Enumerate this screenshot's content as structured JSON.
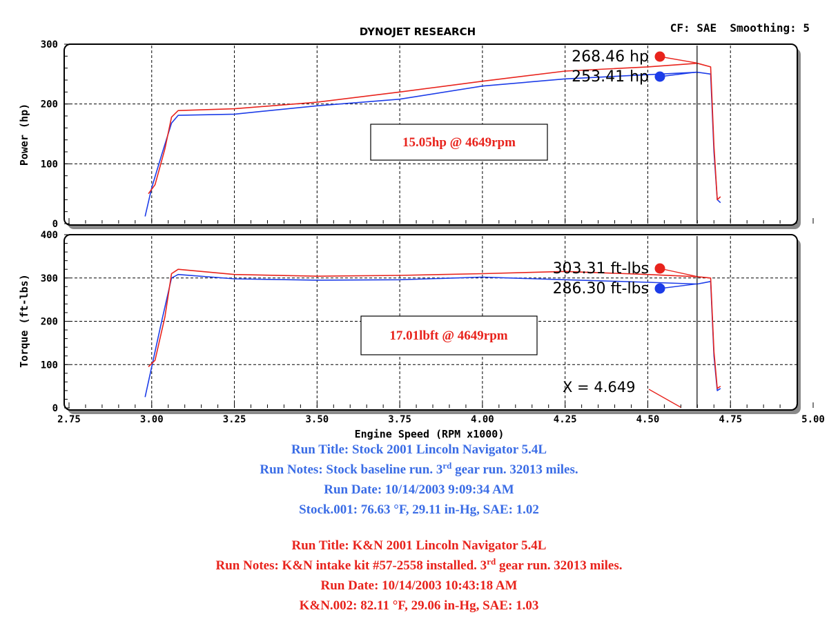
{
  "header": {
    "title": "DYNOJET RESEARCH",
    "settings": "CF: SAE  Smoothing: 5"
  },
  "colors": {
    "stock": "#1c3ce8",
    "kn": "#e8231c",
    "notes_stock": "#3b6de6",
    "notes_kn": "#e8231c"
  },
  "chart_data": [
    {
      "type": "line",
      "ylabel": "Power (hp)",
      "xlim": [
        2.75,
        5.0
      ],
      "ylim": [
        0,
        300
      ],
      "y_ticks": [
        "0",
        "100",
        "200",
        "300"
      ],
      "grid": true,
      "cursor_x": 4.649,
      "series": [
        {
          "name": "Stock",
          "color": "#1c3ce8",
          "x": [
            2.98,
            3.0,
            3.03,
            3.06,
            3.08,
            3.25,
            3.5,
            3.75,
            4.0,
            4.25,
            4.5,
            4.65,
            4.69,
            4.7,
            4.71,
            4.72
          ],
          "y": [
            12,
            60,
            115,
            168,
            181,
            183,
            197,
            208,
            230,
            242,
            249,
            253,
            250,
            120,
            40,
            35
          ]
        },
        {
          "name": "K&N",
          "color": "#e8231c",
          "x": [
            2.99,
            3.01,
            3.04,
            3.06,
            3.08,
            3.25,
            3.5,
            3.75,
            4.0,
            4.25,
            4.5,
            4.65,
            4.69,
            4.7,
            4.71,
            4.72
          ],
          "y": [
            50,
            65,
            125,
            178,
            189,
            192,
            203,
            220,
            238,
            255,
            262,
            268,
            262,
            130,
            40,
            45
          ]
        }
      ],
      "peaks": [
        {
          "label": "268.46 hp",
          "value": 268.46,
          "color": "#e8231c"
        },
        {
          "label": "253.41 hp",
          "value": 253.41,
          "color": "#1c3ce8"
        }
      ],
      "annotation": "15.05hp @ 4649rpm"
    },
    {
      "type": "line",
      "xlabel": "Engine Speed (RPM x1000)",
      "ylabel": "Torque (ft-lbs)",
      "xlim": [
        2.75,
        5.0
      ],
      "ylim": [
        0,
        400
      ],
      "x_ticks": [
        "2.75",
        "3.00",
        "3.25",
        "3.50",
        "3.75",
        "4.00",
        "4.25",
        "4.50",
        "4.75",
        "5.00"
      ],
      "y_ticks": [
        "0",
        "100",
        "200",
        "300",
        "400"
      ],
      "grid": true,
      "cursor_x": 4.649,
      "cursor_label": "X = 4.649",
      "series": [
        {
          "name": "Stock",
          "color": "#1c3ce8",
          "x": [
            2.98,
            3.0,
            3.03,
            3.06,
            3.08,
            3.25,
            3.5,
            3.75,
            4.0,
            4.25,
            4.5,
            4.65,
            4.69,
            4.7,
            4.71,
            4.72
          ],
          "y": [
            25,
            95,
            200,
            300,
            308,
            298,
            295,
            296,
            302,
            296,
            290,
            286,
            292,
            120,
            40,
            45
          ]
        },
        {
          "name": "K&N",
          "color": "#e8231c",
          "x": [
            2.99,
            3.01,
            3.04,
            3.06,
            3.08,
            3.25,
            3.5,
            3.75,
            4.0,
            4.25,
            4.5,
            4.65,
            4.69,
            4.7,
            4.71,
            4.72
          ],
          "y": [
            95,
            110,
            210,
            310,
            320,
            308,
            304,
            306,
            310,
            315,
            308,
            303,
            300,
            130,
            45,
            50
          ]
        }
      ],
      "peaks": [
        {
          "label": "303.31 ft-lbs",
          "value": 303.31,
          "color": "#e8231c"
        },
        {
          "label": "286.30 ft-lbs",
          "value": 286.3,
          "color": "#1c3ce8"
        }
      ],
      "annotation": "17.01lbft @ 4649rpm"
    }
  ],
  "notes": {
    "stock": {
      "run_title": "Run Title: Stock 2001 Lincoln Navigator 5.4L",
      "run_notes_pre": "Run Notes: Stock baseline run. 3",
      "run_notes_sup": "rd",
      "run_notes_post": " gear run. 32013 miles.",
      "run_date": "Run Date: 10/14/2003 9:09:34 AM",
      "conditions": "Stock.001: 76.63 °F, 29.11 in-Hg, SAE: 1.02"
    },
    "kn": {
      "run_title": "Run Title: K&N 2001 Lincoln Navigator 5.4L",
      "run_notes_pre": "Run Notes: K&N intake kit #57-2558 installed. 3",
      "run_notes_sup": "rd",
      "run_notes_post": " gear run. 32013 miles.",
      "run_date": "Run Date: 10/14/2003 10:43:18 AM",
      "conditions": "K&N.002: 82.11 °F, 29.06 in-Hg, SAE: 1.03"
    }
  }
}
